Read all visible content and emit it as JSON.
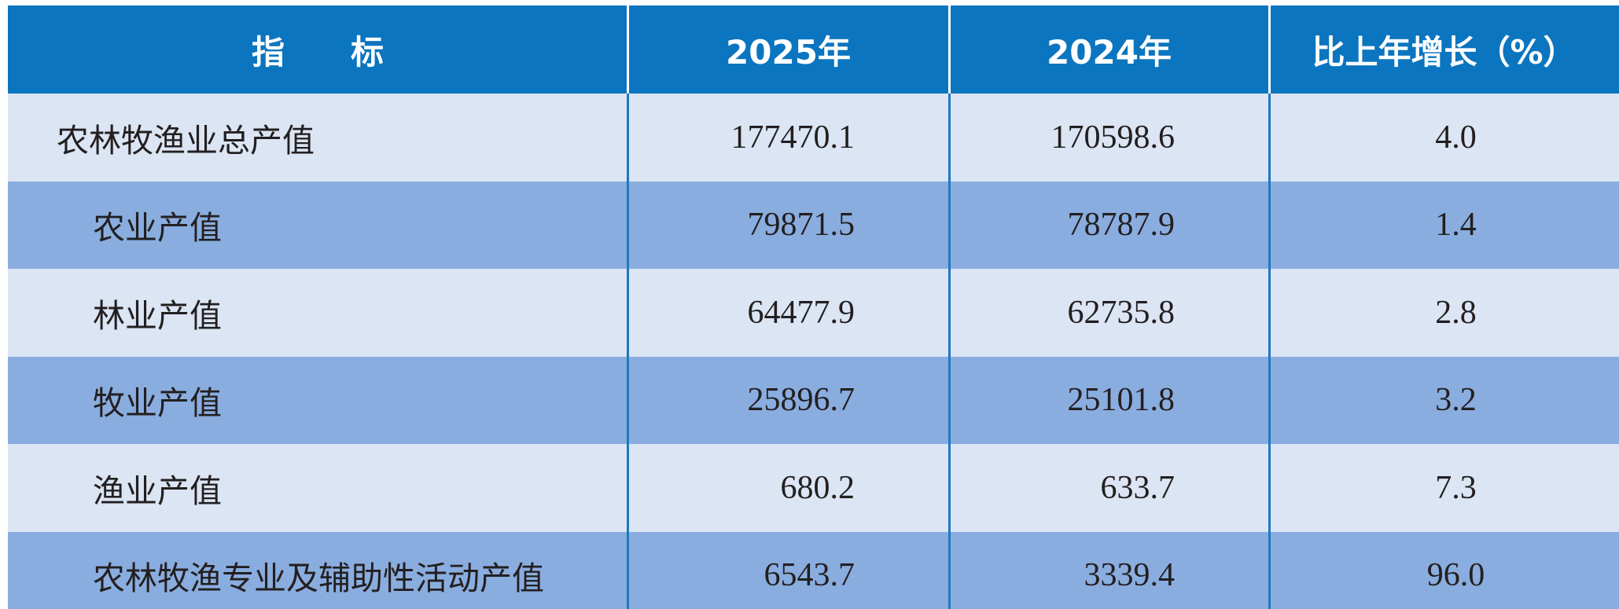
{
  "table": {
    "header": [
      "指　　标",
      "2025年",
      "2024年",
      "比上年增长（%）"
    ],
    "rows": [
      [
        "农林牧渔业总产值",
        "177470.1",
        "170598.6",
        "4.0"
      ],
      [
        "农业产值",
        "79871.5",
        "78787.9",
        "1.4"
      ],
      [
        "林业产值",
        "64477.9",
        "62735.8",
        "2.8"
      ],
      [
        "牧业产值",
        "25896.7",
        "25101.8",
        "3.2"
      ],
      [
        "渔业产值",
        "680.2",
        "633.7",
        "7.3"
      ],
      [
        "农林牧渔专业及辅助性活动产值",
        "6543.7",
        "3339.4",
        "96.0"
      ]
    ]
  }
}
